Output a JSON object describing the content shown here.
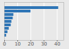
{
  "chart_data": {
    "type": "bar",
    "orientation": "horizontal",
    "categories": [
      null,
      null,
      null,
      null,
      null,
      null,
      null,
      null,
      null
    ],
    "values": [
      41,
      20,
      7,
      6.5,
      5.5,
      5,
      3.5,
      2.5,
      1.5
    ],
    "color": "#2e75b6",
    "xlim": [
      0,
      45
    ],
    "xticks": [
      0,
      10,
      20,
      30,
      40
    ],
    "grid": true,
    "tick_labels": "x"
  }
}
